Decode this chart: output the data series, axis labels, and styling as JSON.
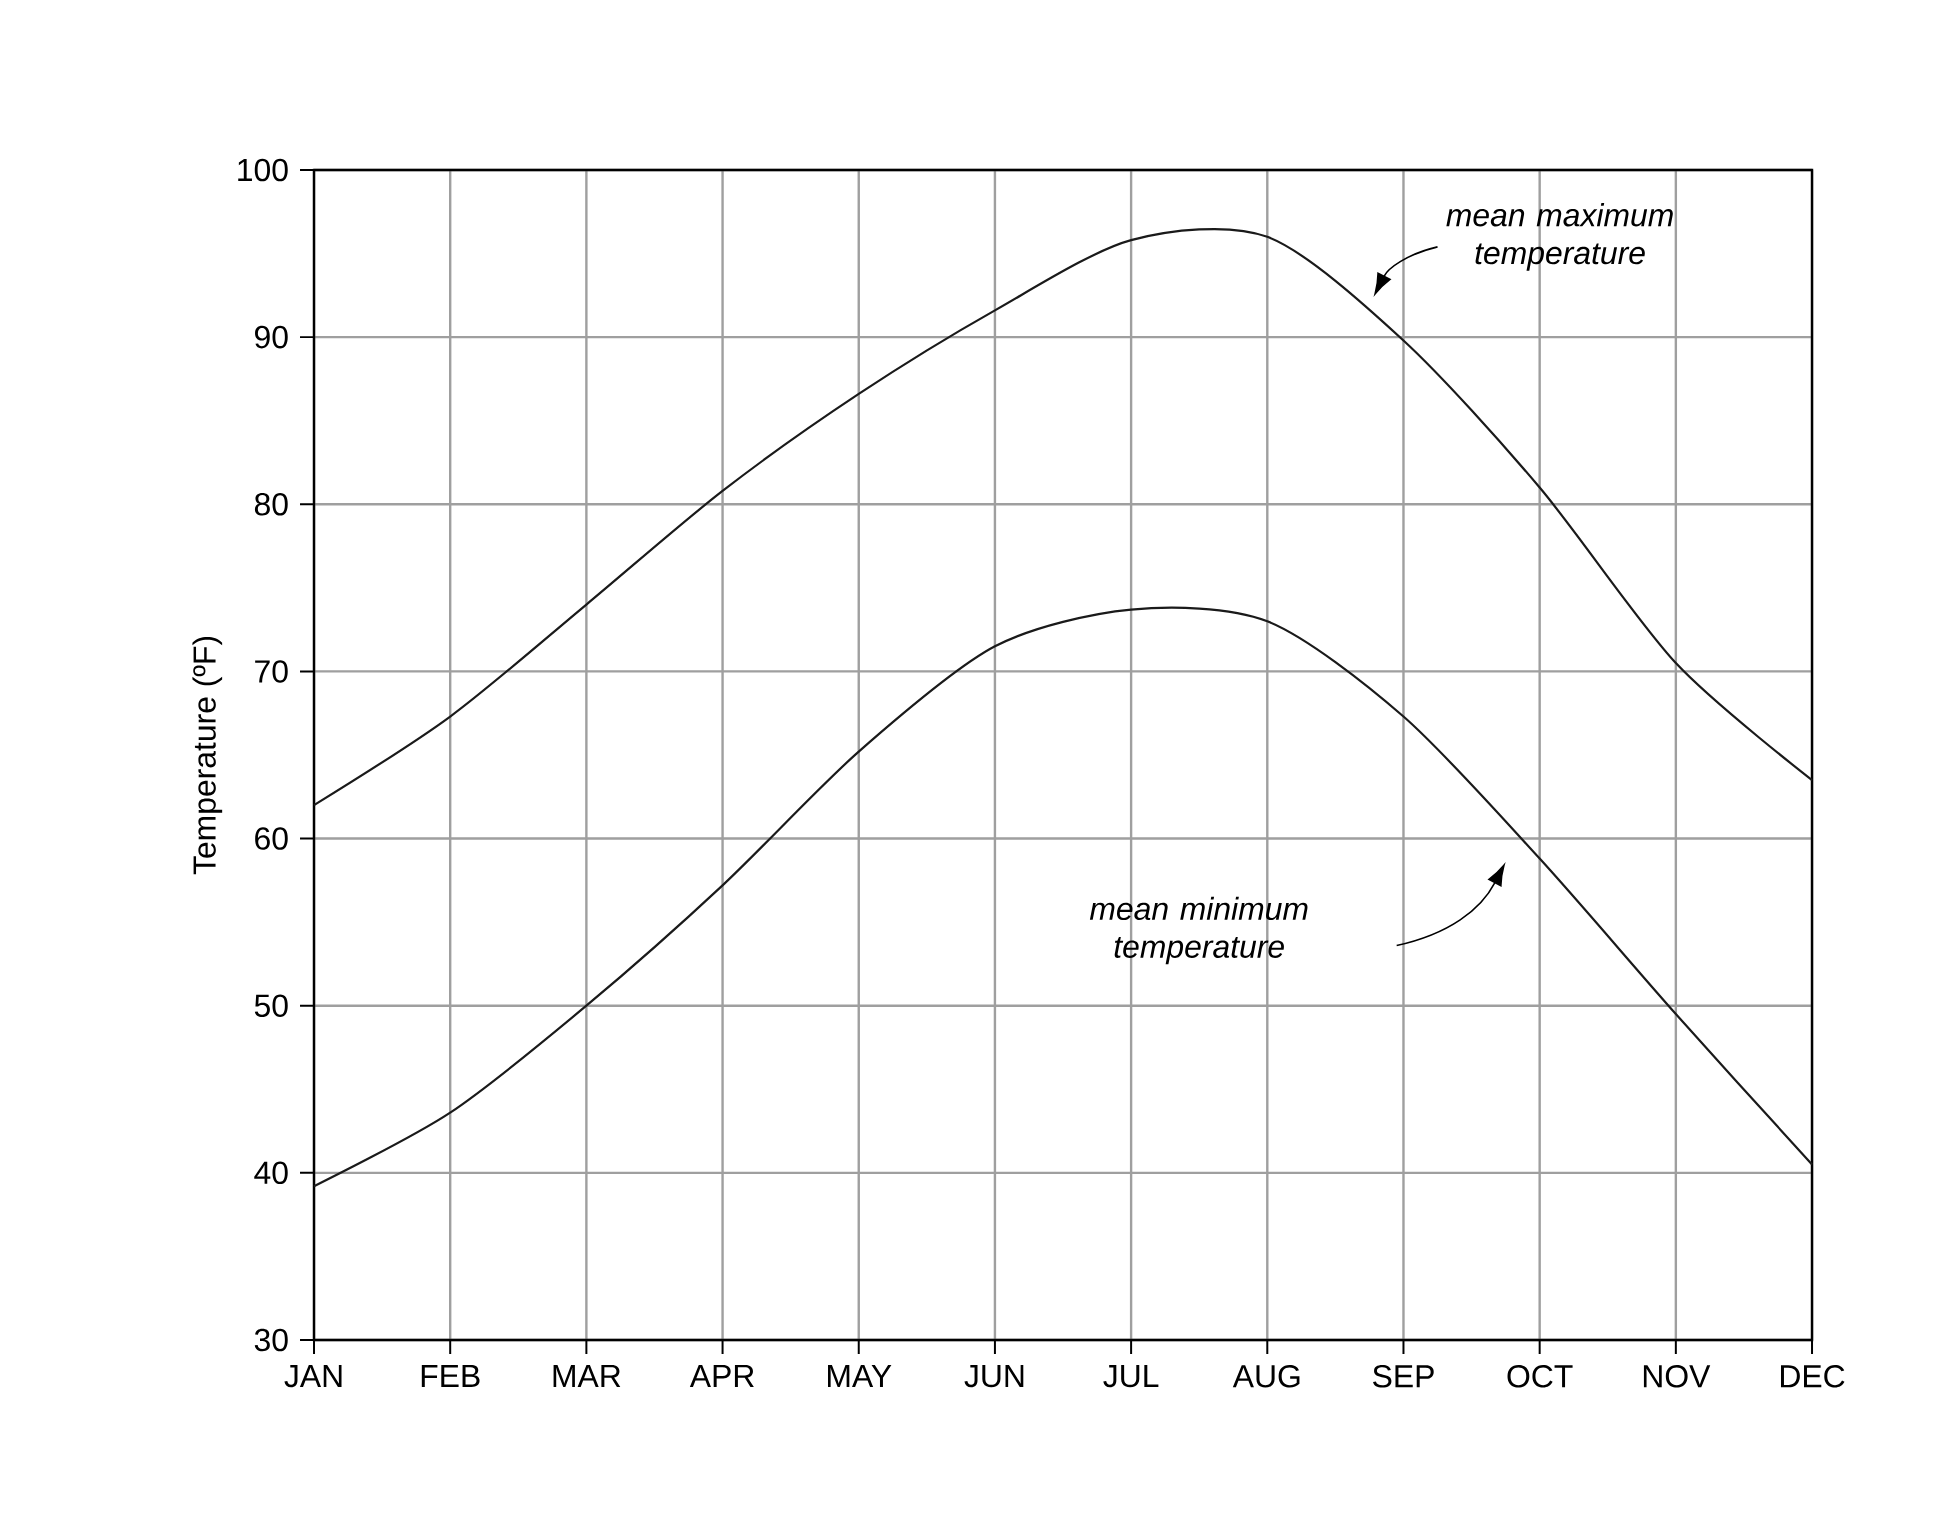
{
  "chart_data": {
    "type": "line",
    "ylabel": "Temperature (ºF)",
    "categories": [
      "JAN",
      "FEB",
      "MAR",
      "APR",
      "MAY",
      "JUN",
      "JUL",
      "AUG",
      "SEP",
      "OCT",
      "NOV",
      "DEC"
    ],
    "series": [
      {
        "color": "#1a1a1a",
        "values": [
          62,
          67.3,
          74,
          80.8,
          86.6,
          91.6,
          95.8,
          96,
          89.8,
          81,
          70.5,
          63.5
        ]
      },
      {
        "color": "#1a1a1a",
        "values": [
          39.2,
          43.6,
          50,
          57.2,
          65.2,
          71.5,
          73.7,
          73,
          67.3,
          58.8,
          49.5,
          40.5
        ]
      }
    ],
    "annotations": [
      "mean maximum temperature",
      "mean minimum temperature"
    ],
    "ylim": [
      30,
      100
    ],
    "yticks": [
      30,
      40,
      50,
      60,
      70,
      80,
      90,
      100
    ],
    "grid": true,
    "marker": "none",
    "line_style": "solid"
  }
}
